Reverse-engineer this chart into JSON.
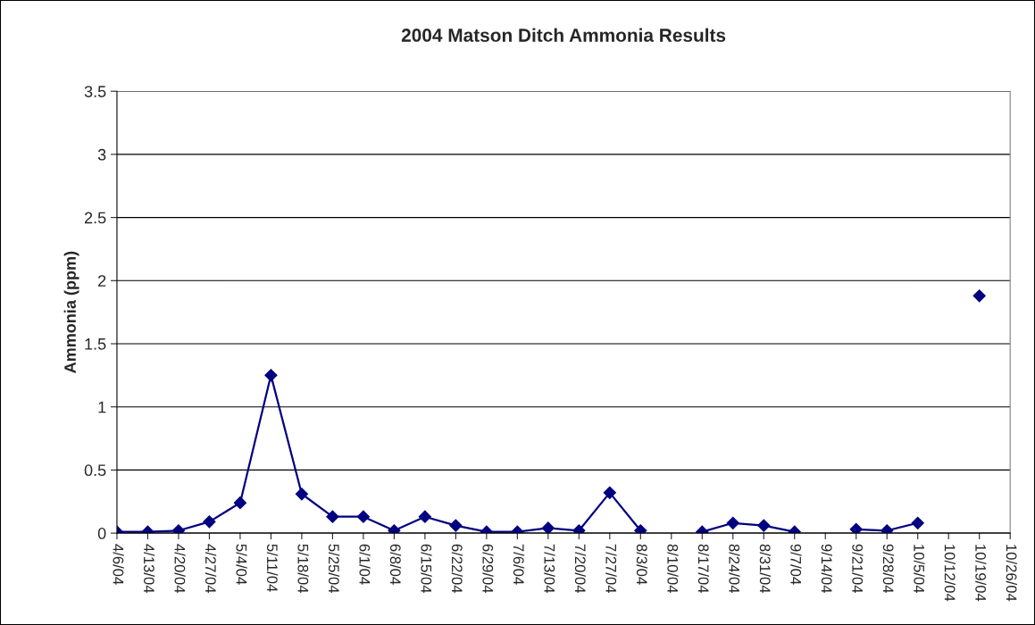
{
  "chart_data": {
    "type": "line",
    "title": "2004 Matson Ditch Ammonia Results",
    "ylabel": "Ammonia (ppm)",
    "categories": [
      "4/6/04",
      "4/13/04",
      "4/20/04",
      "4/27/04",
      "5/4/04",
      "5/11/04",
      "5/18/04",
      "5/25/04",
      "6/1/04",
      "6/8/04",
      "6/15/04",
      "6/22/04",
      "6/29/04",
      "7/6/04",
      "7/13/04",
      "7/20/04",
      "7/27/04",
      "8/3/04",
      "8/10/04",
      "8/17/04",
      "8/24/04",
      "8/31/04",
      "9/7/04",
      "9/14/04",
      "9/21/04",
      "9/28/04",
      "10/5/04",
      "10/12/04",
      "10/19/04",
      "10/26/04"
    ],
    "series": [
      {
        "color": "#000080",
        "values": [
          0.01,
          0.01,
          0.02,
          0.09,
          0.24,
          1.25,
          0.31,
          0.13,
          0.13,
          0.02,
          0.13,
          0.06,
          0.01,
          0.01,
          0.04,
          0.02,
          0.32,
          0.02,
          null,
          0.01,
          0.08,
          0.06,
          0.01,
          null,
          0.03,
          0.02,
          0.08,
          null,
          1.88,
          null
        ]
      }
    ],
    "ylim": [
      0,
      3.5
    ],
    "yticks": [
      0,
      0.5,
      1,
      1.5,
      2,
      2.5,
      3,
      3.5
    ],
    "grid": "y",
    "marker": "diamond",
    "line_style": "solid",
    "legend": false
  }
}
